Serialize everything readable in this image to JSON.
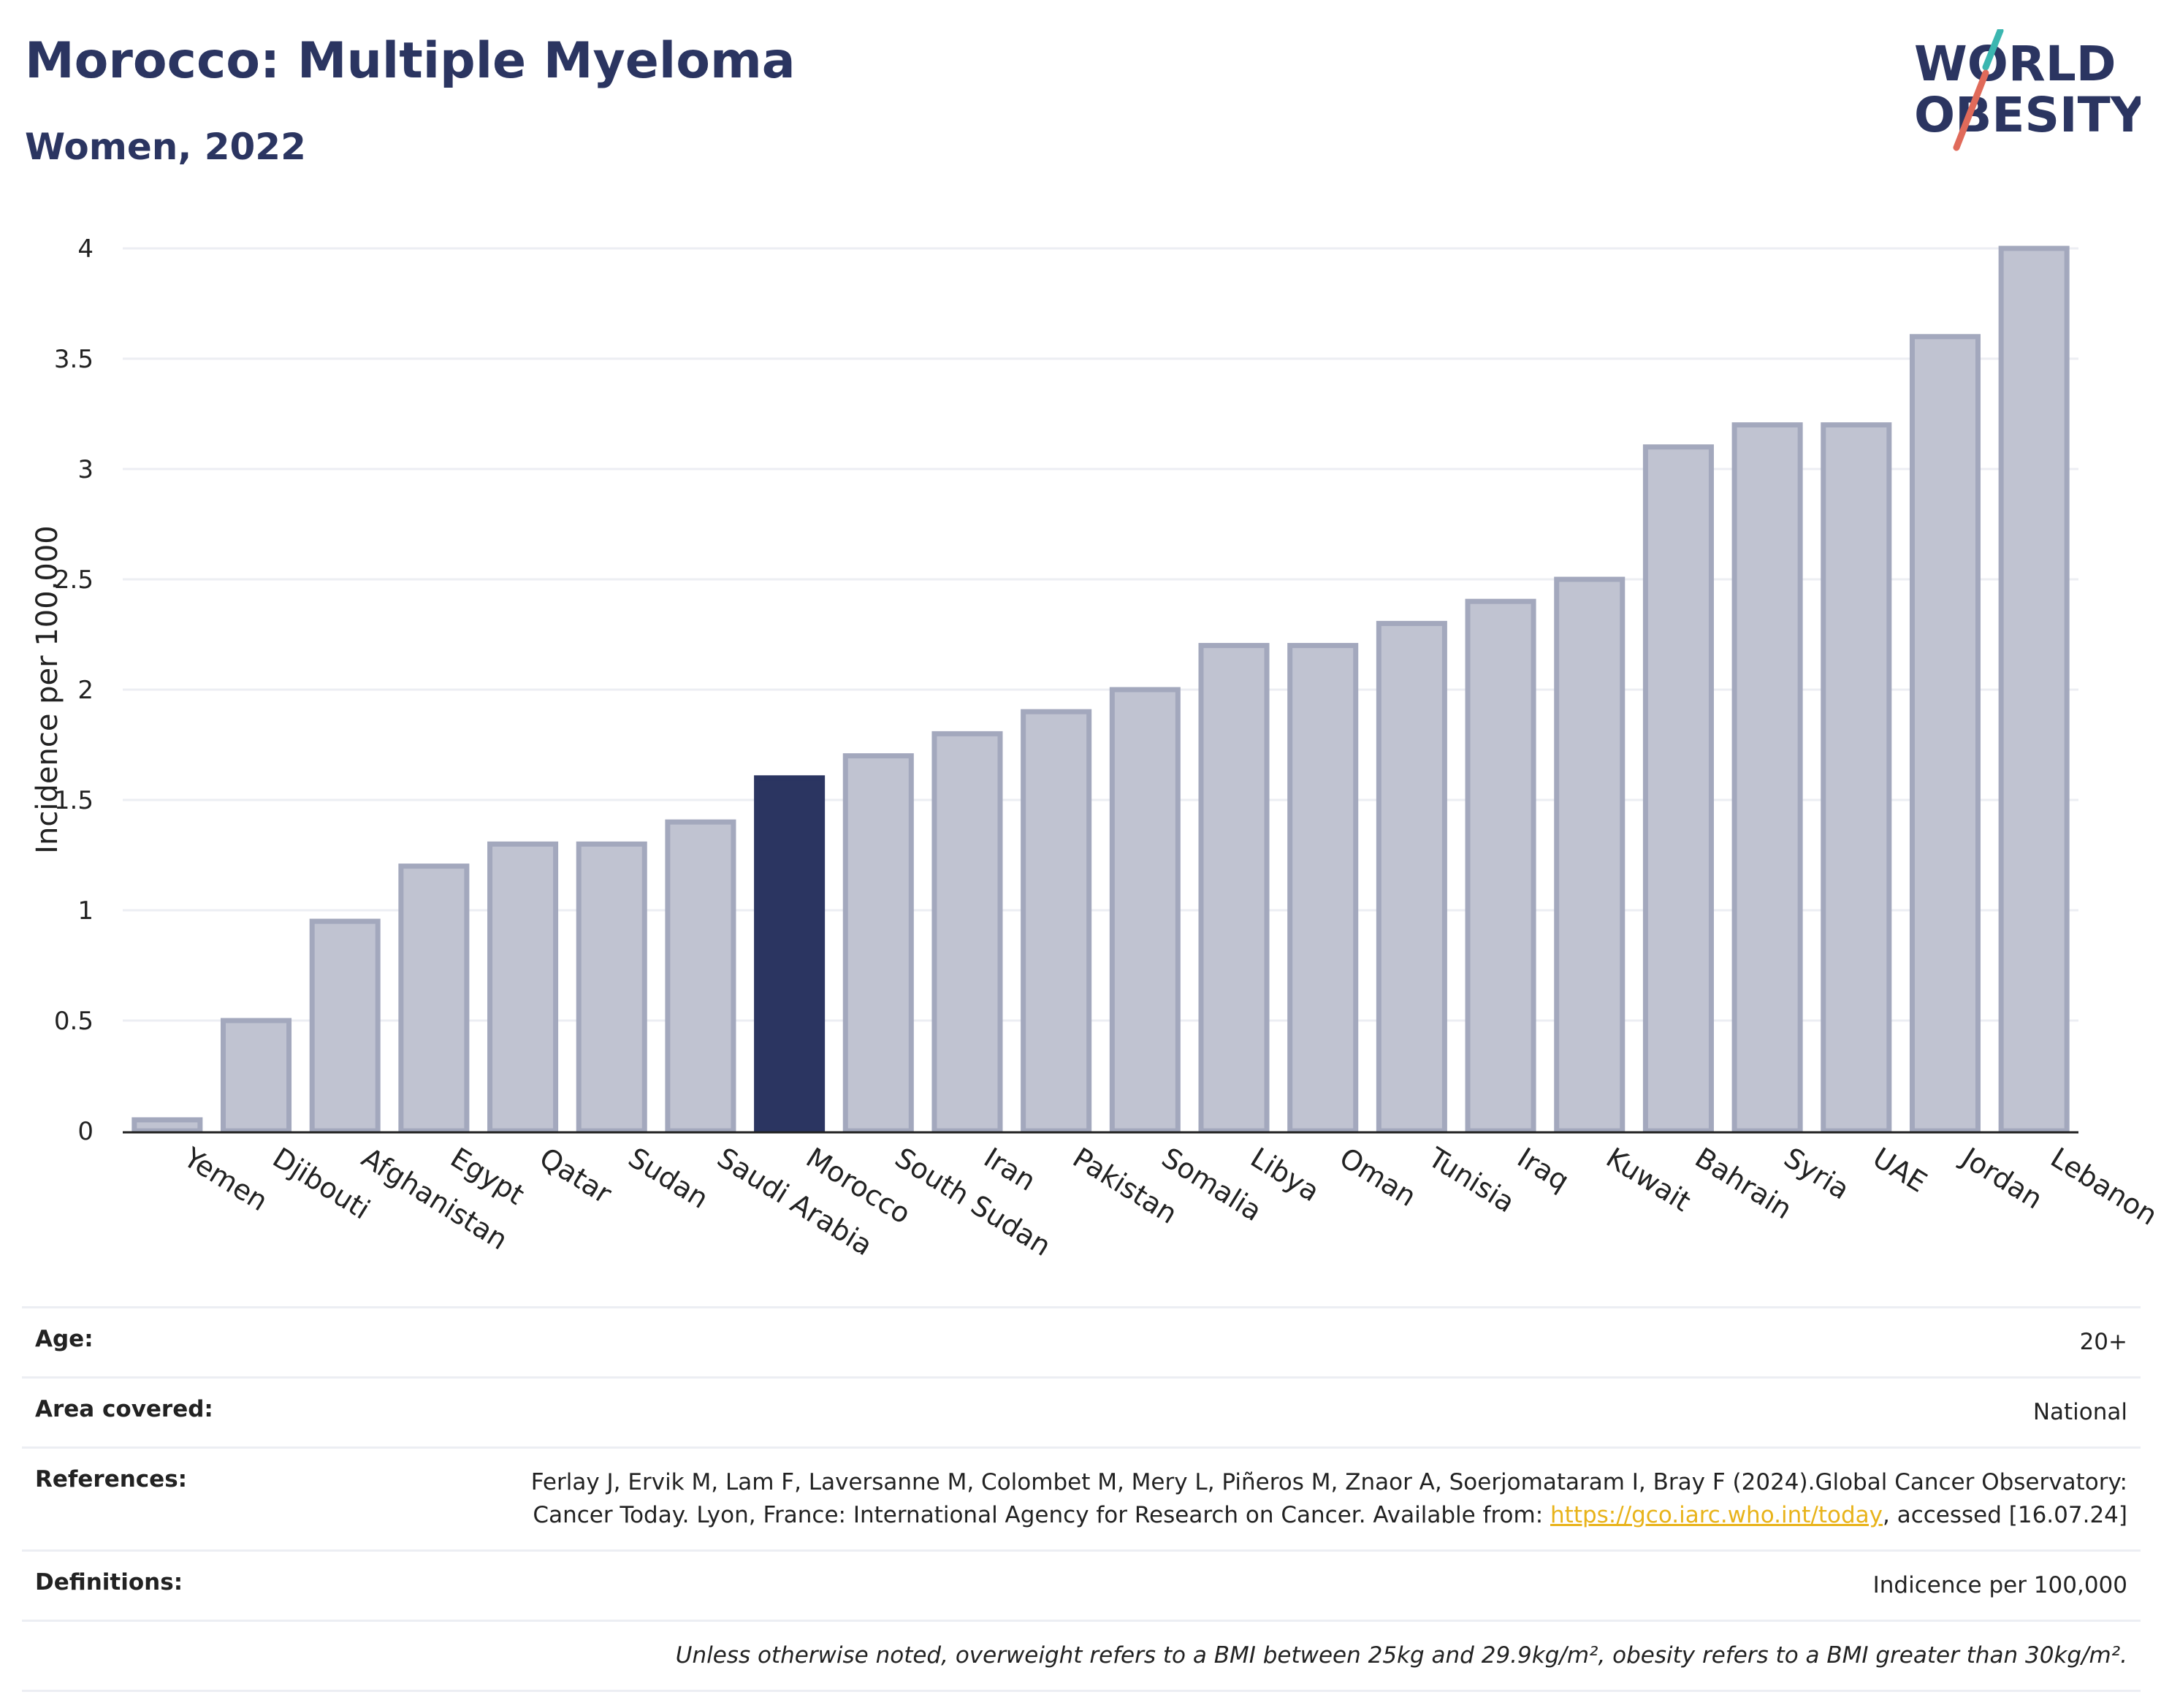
{
  "header": {
    "title": "Morocco: Multiple Myeloma",
    "subtitle": "Women, 2022"
  },
  "logo": {
    "line1": "WORLD",
    "line2": "OBESITY",
    "colors": {
      "text": "#2b3561",
      "slash_teal": "#3bb6b0",
      "slash_coral": "#e06a5a"
    }
  },
  "chart_data": {
    "type": "bar",
    "ylabel": "Incidence per 100,000",
    "xlabel": "",
    "ylim": [
      0,
      4
    ],
    "yticks": [
      {
        "value": 0,
        "label": "0"
      },
      {
        "value": 0.5,
        "label": "0.5"
      },
      {
        "value": 1,
        "label": "1"
      },
      {
        "value": 1.5,
        "label": "1.5"
      },
      {
        "value": 2,
        "label": "2"
      },
      {
        "value": 2.5,
        "label": "2.5"
      },
      {
        "value": 3,
        "label": "3"
      },
      {
        "value": 3.5,
        "label": "3.5"
      },
      {
        "value": 4,
        "label": "4"
      }
    ],
    "grid": true,
    "categories": [
      "Yemen",
      "Djibouti",
      "Afghanistan",
      "Egypt",
      "Qatar",
      "Sudan",
      "Saudi Arabia",
      "Morocco",
      "South Sudan",
      "Iran",
      "Pakistan",
      "Somalia",
      "Libya",
      "Oman",
      "Tunisia",
      "Iraq",
      "Kuwait",
      "Bahrain",
      "Syria",
      "UAE",
      "Jordan",
      "Lebanon"
    ],
    "values": [
      0.05,
      0.5,
      0.95,
      1.2,
      1.3,
      1.3,
      1.4,
      1.6,
      1.7,
      1.8,
      1.9,
      2.0,
      2.2,
      2.2,
      2.3,
      2.4,
      2.5,
      3.1,
      3.2,
      3.2,
      3.6,
      4.0
    ],
    "highlight": "Morocco",
    "colors": {
      "bar": "#c0c3d1",
      "bar_border": "#a3a8bd",
      "highlight": "#2b3561",
      "grid": "#eceef3",
      "axis": "#222222"
    }
  },
  "info": {
    "age_label": "Age:",
    "age_value": "20+",
    "area_label": "Area covered:",
    "area_value": "National",
    "references_label": "References:",
    "references_text_1": "Ferlay J, Ervik M, Lam F, Laversanne M, Colombet M, Mery L, Piñeros M, Znaor A, Soerjomataram I, Bray F (2024).Global Cancer Observatory: Cancer Today. Lyon, France: International Agency for Research on Cancer. Available from: ",
    "references_link": "https://gco.iarc.who.int/today",
    "references_text_2": ", accessed [16.07.24]",
    "definitions_label": "Definitions:",
    "definitions_value": "Indicence per 100,000",
    "note": "Unless otherwise noted, overweight refers to a BMI between 25kg and 29.9kg/m², obesity refers to a BMI greater than 30kg/m²."
  }
}
